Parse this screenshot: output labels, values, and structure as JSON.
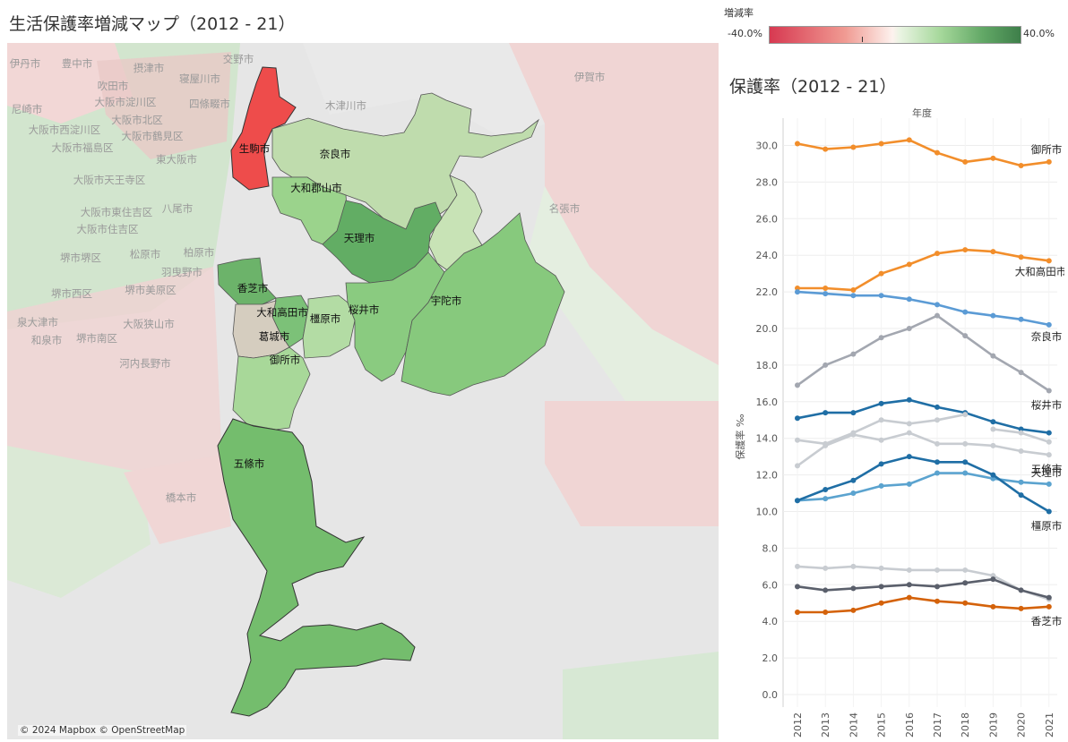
{
  "map": {
    "title": "生活保護率増減マップ（2012 - 21）",
    "attribution": "© 2024 Mapbox  © OpenStreetMap",
    "legend": {
      "title": "増減率",
      "min_label": "-40.0%",
      "max_label": "40.0%"
    },
    "background_labels": [
      "伊丹市",
      "豊中市",
      "摂津市",
      "交野市",
      "吹田市",
      "寝屋川市",
      "尼崎市",
      "大阪市淀川区",
      "四條畷市",
      "木津川市",
      "大阪市北区",
      "大阪市西淀川区",
      "大阪市鶴見区",
      "大阪市福島区",
      "東大阪市",
      "伊賀市",
      "大阪市天王寺区",
      "八尾市",
      "名張市",
      "大阪市東住吉区",
      "大阪市住吉区",
      "柏原市",
      "堺市堺区",
      "松原市",
      "羽曳野市",
      "堺市西区",
      "堺市美原区",
      "泉大津市",
      "大阪狭山市",
      "和泉市",
      "堺市南区",
      "河内長野市",
      "橋本市"
    ],
    "municipalities": [
      {
        "name": "生駒市",
        "color": "#ee4c4b"
      },
      {
        "name": "奈良市",
        "color": "#bfdcad"
      },
      {
        "name": "大和郡山市",
        "color": "#9bd38c"
      },
      {
        "name": "天理市",
        "color": "#62ad64"
      },
      {
        "name": "香芝市",
        "color": "#6cb36a"
      },
      {
        "name": "大和高田市",
        "color": "#7cc178"
      },
      {
        "name": "橿原市",
        "color": "#b3dca4"
      },
      {
        "name": "桜井市",
        "color": "#8acb80"
      },
      {
        "name": "宇陀市",
        "color": "#87c97d"
      },
      {
        "name": "葛城市",
        "color": "#d5cdbf"
      },
      {
        "name": "御所市",
        "color": "#a8d899"
      },
      {
        "name": "五條市",
        "color": "#74bd6d"
      }
    ]
  },
  "chart_data": {
    "type": "line",
    "title": "保護率（2012 - 21）",
    "xlabel": "年度",
    "ylabel": "保護率 ‰",
    "x": [
      "2012",
      "2013",
      "2014",
      "2015",
      "2016",
      "2017",
      "2018",
      "2019",
      "2020",
      "2021"
    ],
    "ylim": [
      0,
      32
    ],
    "yticks": [
      "0.0",
      "2.0",
      "4.0",
      "6.0",
      "8.0",
      "10.0",
      "12.0",
      "14.0",
      "16.0",
      "18.0",
      "20.0",
      "22.0",
      "24.0",
      "26.0",
      "28.0",
      "30.0"
    ],
    "series": [
      {
        "name": "御所市",
        "color": "#f28e2b",
        "values": [
          30.1,
          29.8,
          29.9,
          30.1,
          30.3,
          29.6,
          29.1,
          29.3,
          28.9,
          29.1
        ]
      },
      {
        "name": "大和高田市",
        "color": "#f28e2b",
        "values": [
          22.2,
          22.2,
          22.1,
          23.0,
          23.5,
          24.1,
          24.3,
          24.2,
          23.9,
          23.7
        ]
      },
      {
        "name": "奈良市",
        "color": "#5b9bd5",
        "values": [
          22.0,
          21.9,
          21.8,
          21.8,
          21.6,
          21.3,
          20.9,
          20.7,
          20.5,
          20.2
        ]
      },
      {
        "name": "桜井市",
        "color": "#a3a7b0",
        "values": [
          16.9,
          18.0,
          18.6,
          19.5,
          20.0,
          20.7,
          19.6,
          18.5,
          17.6,
          16.6
        ]
      },
      {
        "name": "",
        "color": "#1f6ea5",
        "values": [
          15.1,
          15.4,
          15.4,
          15.9,
          16.1,
          15.7,
          15.4,
          14.9,
          14.5,
          14.3
        ]
      },
      {
        "name": "",
        "color": "#c8ccd1",
        "values": [
          13.9,
          13.7,
          14.3,
          15.0,
          14.8,
          15.0,
          15.3,
          null,
          null,
          null
        ]
      },
      {
        "name": "五條市",
        "color": "#c8ccd1",
        "values": [
          12.5,
          13.6,
          14.2,
          13.9,
          14.3,
          13.7,
          13.7,
          13.6,
          13.3,
          13.1
        ]
      },
      {
        "name": "",
        "color": "#c8ccd1",
        "values": [
          null,
          null,
          null,
          null,
          null,
          null,
          null,
          14.5,
          14.3,
          13.8
        ]
      },
      {
        "name": "天理市",
        "color": "#5ba3cf",
        "values": [
          10.6,
          10.7,
          11.0,
          11.4,
          11.5,
          12.1,
          12.1,
          11.8,
          11.6,
          11.5
        ]
      },
      {
        "name": "橿原市",
        "color": "#1f6ea5",
        "values": [
          10.6,
          11.2,
          11.7,
          12.6,
          13.0,
          12.7,
          12.7,
          12.0,
          10.9,
          10.0
        ]
      },
      {
        "name": "",
        "color": "#c8ccd1",
        "values": [
          7.0,
          6.9,
          7.0,
          6.9,
          6.8,
          6.8,
          6.8,
          6.5,
          5.7,
          5.2
        ]
      },
      {
        "name": "",
        "color": "#5a5f6b",
        "values": [
          5.9,
          5.7,
          5.8,
          5.9,
          6.0,
          5.9,
          6.1,
          6.3,
          5.7,
          5.3
        ]
      },
      {
        "name": "香芝市",
        "color": "#d4620a",
        "values": [
          4.5,
          4.5,
          4.6,
          5.0,
          5.3,
          5.1,
          5.0,
          4.8,
          4.7,
          4.8
        ]
      }
    ]
  }
}
